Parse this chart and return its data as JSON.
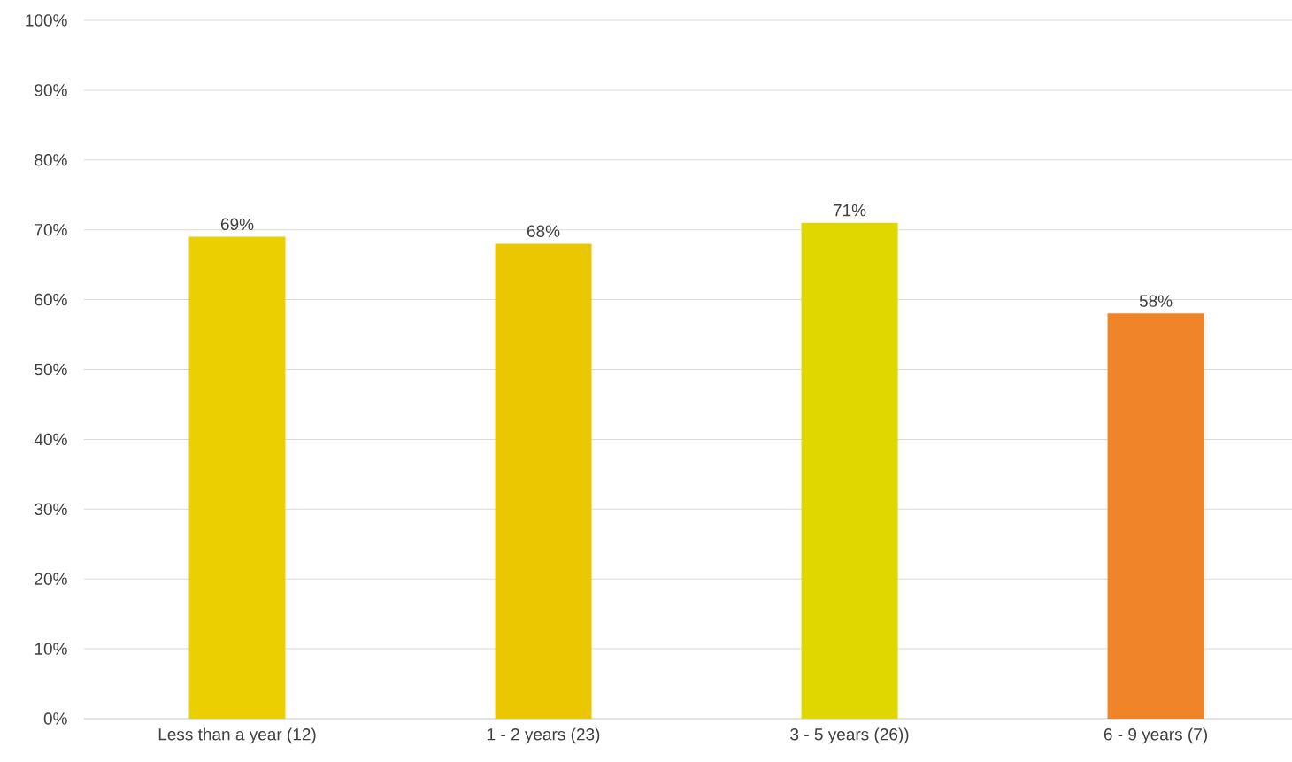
{
  "chart_data": {
    "type": "bar",
    "categories": [
      "Less than a year (12)",
      "1 - 2 years (23)",
      "3 - 5 years (26))",
      "6 - 9 years (7)"
    ],
    "values": [
      69,
      68,
      71,
      58
    ],
    "value_labels": [
      "69%",
      "68%",
      "71%",
      "58%"
    ],
    "colors": [
      "#eccf00",
      "#eac700",
      "#e0d700",
      "#f08428"
    ],
    "ylim": [
      0,
      100
    ],
    "yticks": [
      {
        "value": 0,
        "label": "0%"
      },
      {
        "value": 10,
        "label": "10%"
      },
      {
        "value": 20,
        "label": "20%"
      },
      {
        "value": 30,
        "label": "30%"
      },
      {
        "value": 40,
        "label": "40%"
      },
      {
        "value": 50,
        "label": "50%"
      },
      {
        "value": 60,
        "label": "60%"
      },
      {
        "value": 70,
        "label": "70%"
      },
      {
        "value": 80,
        "label": "80%"
      },
      {
        "value": 90,
        "label": "90%"
      },
      {
        "value": 100,
        "label": "100%"
      }
    ],
    "grid": "y"
  }
}
